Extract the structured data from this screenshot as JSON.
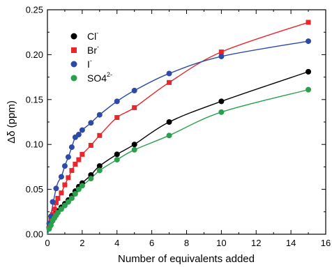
{
  "chart_data": {
    "type": "scatter",
    "title": "",
    "xlabel": "Number of equivalents added",
    "ylabel": "Δδ (ppm)",
    "xlim": [
      0,
      16
    ],
    "ylim": [
      0,
      0.25
    ],
    "x_ticks": [
      0,
      2,
      4,
      6,
      8,
      10,
      12,
      14,
      16
    ],
    "y_ticks": [
      0.0,
      0.05,
      0.1,
      0.15,
      0.2,
      0.25
    ],
    "x_tick_labels": [
      "0",
      "2",
      "4",
      "6",
      "8",
      "10",
      "12",
      "14",
      "16"
    ],
    "y_tick_labels": [
      "0.00",
      "0.05",
      "0.10",
      "0.15",
      "0.20",
      "0.25"
    ],
    "grid": false,
    "legend_position": "top-left",
    "fits": "smooth fitted curves through each series",
    "series": [
      {
        "name": "Cl-",
        "label_main": "Cl",
        "label_sup": "-",
        "color": "#000000",
        "marker": "circle",
        "points": [
          [
            0.1,
            0.008
          ],
          [
            0.2,
            0.013
          ],
          [
            0.3,
            0.017
          ],
          [
            0.4,
            0.02
          ],
          [
            0.5,
            0.023
          ],
          [
            0.6,
            0.026
          ],
          [
            0.8,
            0.03
          ],
          [
            1.0,
            0.034
          ],
          [
            1.2,
            0.038
          ],
          [
            1.4,
            0.043
          ],
          [
            1.6,
            0.048
          ],
          [
            1.8,
            0.053
          ],
          [
            2.0,
            0.057
          ],
          [
            2.5,
            0.066
          ],
          [
            3.0,
            0.076
          ],
          [
            4.0,
            0.089
          ],
          [
            5.0,
            0.1
          ],
          [
            7.0,
            0.125
          ],
          [
            10.0,
            0.148
          ],
          [
            15.0,
            0.181
          ]
        ]
      },
      {
        "name": "Br-",
        "label_main": "Br",
        "label_sup": "-",
        "color": "#e8262c",
        "marker": "square",
        "points": [
          [
            0.1,
            0.01
          ],
          [
            0.2,
            0.016
          ],
          [
            0.3,
            0.022
          ],
          [
            0.4,
            0.028
          ],
          [
            0.5,
            0.035
          ],
          [
            0.6,
            0.04
          ],
          [
            0.8,
            0.046
          ],
          [
            1.0,
            0.055
          ],
          [
            1.2,
            0.063
          ],
          [
            1.4,
            0.071
          ],
          [
            1.6,
            0.078
          ],
          [
            1.8,
            0.083
          ],
          [
            2.0,
            0.089
          ],
          [
            2.5,
            0.099
          ],
          [
            3.0,
            0.11
          ],
          [
            4.0,
            0.13
          ],
          [
            5.0,
            0.141
          ],
          [
            7.0,
            0.169
          ],
          [
            10.0,
            0.203
          ],
          [
            15.0,
            0.236
          ]
        ]
      },
      {
        "name": "I-",
        "label_main": "I",
        "label_sup": "-",
        "color": "#2c4aa6",
        "marker": "circle",
        "points": [
          [
            0.1,
            0.012
          ],
          [
            0.2,
            0.02
          ],
          [
            0.3,
            0.036
          ],
          [
            0.5,
            0.051
          ],
          [
            0.8,
            0.064
          ],
          [
            1.0,
            0.076
          ],
          [
            1.2,
            0.086
          ],
          [
            1.4,
            0.097
          ],
          [
            1.6,
            0.108
          ],
          [
            1.8,
            0.111
          ],
          [
            2.0,
            0.116
          ],
          [
            2.5,
            0.124
          ],
          [
            3.0,
            0.133
          ],
          [
            4.0,
            0.148
          ],
          [
            5.0,
            0.16
          ],
          [
            7.0,
            0.179
          ],
          [
            10.0,
            0.198
          ],
          [
            15.0,
            0.215
          ]
        ]
      },
      {
        "name": "SO42-",
        "label_main": "SO4",
        "label_sup": "2-",
        "color": "#29a04b",
        "marker": "circle",
        "points": [
          [
            0.1,
            0.006
          ],
          [
            0.2,
            0.01
          ],
          [
            0.3,
            0.015
          ],
          [
            0.4,
            0.018
          ],
          [
            0.5,
            0.021
          ],
          [
            0.6,
            0.024
          ],
          [
            0.8,
            0.028
          ],
          [
            1.0,
            0.032
          ],
          [
            1.2,
            0.036
          ],
          [
            1.4,
            0.04
          ],
          [
            1.6,
            0.045
          ],
          [
            1.8,
            0.05
          ],
          [
            2.0,
            0.054
          ],
          [
            2.5,
            0.062
          ],
          [
            3.0,
            0.071
          ],
          [
            4.0,
            0.083
          ],
          [
            5.0,
            0.094
          ],
          [
            7.0,
            0.11
          ],
          [
            10.0,
            0.136
          ],
          [
            15.0,
            0.161
          ]
        ]
      }
    ]
  }
}
